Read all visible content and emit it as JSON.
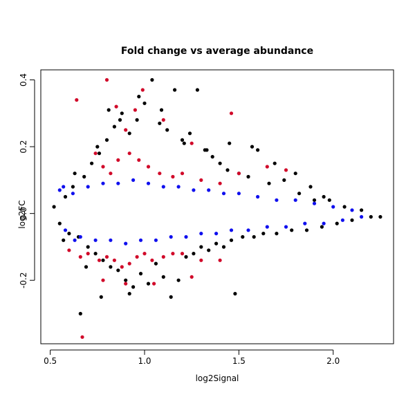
{
  "chart_data": {
    "type": "scatter",
    "title": "Fold change vs average abundance",
    "xlabel": "log2Signal",
    "ylabel": "log2FC",
    "xlim": [
      0.45,
      2.32
    ],
    "ylim": [
      -0.39,
      0.43
    ],
    "xticks": [
      0.5,
      1.0,
      1.5,
      2.0
    ],
    "xtick_labels": [
      "0.5",
      "1.0",
      "1.5",
      "2.0"
    ],
    "yticks": [
      -0.2,
      0.0,
      0.2,
      0.4
    ],
    "ytick_labels": [
      "-0.2",
      "0.0",
      "0.2",
      "0.4"
    ],
    "grid": false,
    "legend": "none",
    "series_colors": {
      "black": "#000000",
      "blue": "#1010ee",
      "red": "#d10a2a"
    },
    "series": [
      {
        "color": "black",
        "points": [
          [
            0.52,
            0.02
          ],
          [
            0.55,
            -0.03
          ],
          [
            0.58,
            0.05
          ],
          [
            0.6,
            -0.06
          ],
          [
            0.62,
            0.08
          ],
          [
            0.65,
            -0.07
          ],
          [
            0.68,
            0.11
          ],
          [
            0.7,
            -0.1
          ],
          [
            0.72,
            0.15
          ],
          [
            0.74,
            -0.12
          ],
          [
            0.76,
            0.18
          ],
          [
            0.78,
            -0.14
          ],
          [
            0.8,
            0.22
          ],
          [
            0.82,
            -0.16
          ],
          [
            0.84,
            0.26
          ],
          [
            0.86,
            -0.17
          ],
          [
            0.88,
            0.3
          ],
          [
            0.9,
            -0.2
          ],
          [
            0.92,
            0.24
          ],
          [
            0.94,
            -0.22
          ],
          [
            0.96,
            0.28
          ],
          [
            0.98,
            -0.18
          ],
          [
            1.0,
            0.33
          ],
          [
            1.02,
            -0.21
          ],
          [
            1.04,
            0.4
          ],
          [
            1.06,
            -0.15
          ],
          [
            1.08,
            0.27
          ],
          [
            1.1,
            -0.19
          ],
          [
            1.12,
            0.25
          ],
          [
            1.14,
            -0.25
          ],
          [
            1.16,
            0.37
          ],
          [
            1.18,
            -0.2
          ],
          [
            1.2,
            0.22
          ],
          [
            1.22,
            -0.13
          ],
          [
            1.24,
            0.24
          ],
          [
            1.26,
            -0.12
          ],
          [
            1.28,
            0.37
          ],
          [
            1.3,
            -0.1
          ],
          [
            1.32,
            0.19
          ],
          [
            1.34,
            -0.11
          ],
          [
            1.36,
            0.17
          ],
          [
            1.38,
            -0.09
          ],
          [
            1.4,
            0.15
          ],
          [
            1.42,
            -0.1
          ],
          [
            1.44,
            0.13
          ],
          [
            1.46,
            -0.08
          ],
          [
            1.48,
            -0.24
          ],
          [
            1.5,
            0.12
          ],
          [
            1.52,
            -0.07
          ],
          [
            1.55,
            0.11
          ],
          [
            1.58,
            -0.07
          ],
          [
            1.6,
            0.19
          ],
          [
            1.63,
            -0.06
          ],
          [
            1.66,
            0.09
          ],
          [
            1.7,
            -0.06
          ],
          [
            1.74,
            0.1
          ],
          [
            1.78,
            -0.05
          ],
          [
            1.82,
            0.06
          ],
          [
            1.86,
            -0.05
          ],
          [
            1.9,
            0.04
          ],
          [
            1.94,
            -0.04
          ],
          [
            1.98,
            0.04
          ],
          [
            2.02,
            -0.03
          ],
          [
            2.06,
            0.02
          ],
          [
            2.1,
            -0.02
          ],
          [
            2.15,
            0.01
          ],
          [
            2.2,
            -0.01
          ],
          [
            2.25,
            -0.01
          ],
          [
            0.66,
            -0.3
          ],
          [
            0.77,
            -0.25
          ],
          [
            0.92,
            -0.24
          ],
          [
            0.57,
            -0.08
          ],
          [
            0.63,
            0.12
          ],
          [
            0.69,
            -0.16
          ],
          [
            0.75,
            0.2
          ],
          [
            0.81,
            0.31
          ],
          [
            0.87,
            0.28
          ],
          [
            0.97,
            0.35
          ],
          [
            1.09,
            0.31
          ],
          [
            1.21,
            0.21
          ],
          [
            1.33,
            0.19
          ],
          [
            1.45,
            0.21
          ],
          [
            1.57,
            0.2
          ],
          [
            1.69,
            0.15
          ],
          [
            1.8,
            0.12
          ],
          [
            1.88,
            0.08
          ],
          [
            1.95,
            0.05
          ]
        ]
      },
      {
        "color": "blue",
        "points": [
          [
            0.55,
            0.07
          ],
          [
            0.58,
            -0.05
          ],
          [
            0.62,
            0.06
          ],
          [
            0.66,
            -0.07
          ],
          [
            0.7,
            0.08
          ],
          [
            0.74,
            -0.08
          ],
          [
            0.78,
            0.09
          ],
          [
            0.82,
            -0.08
          ],
          [
            0.86,
            0.09
          ],
          [
            0.9,
            -0.09
          ],
          [
            0.94,
            0.1
          ],
          [
            0.98,
            -0.08
          ],
          [
            1.02,
            0.09
          ],
          [
            1.06,
            -0.08
          ],
          [
            1.1,
            0.08
          ],
          [
            1.14,
            -0.07
          ],
          [
            1.18,
            0.08
          ],
          [
            1.22,
            -0.07
          ],
          [
            1.26,
            0.07
          ],
          [
            1.3,
            -0.06
          ],
          [
            1.34,
            0.07
          ],
          [
            1.38,
            -0.06
          ],
          [
            1.42,
            0.06
          ],
          [
            1.46,
            -0.05
          ],
          [
            1.5,
            0.06
          ],
          [
            1.55,
            -0.05
          ],
          [
            1.6,
            0.05
          ],
          [
            1.65,
            -0.04
          ],
          [
            1.7,
            0.04
          ],
          [
            1.75,
            -0.04
          ],
          [
            1.8,
            0.04
          ],
          [
            1.85,
            -0.03
          ],
          [
            1.9,
            0.03
          ],
          [
            1.95,
            -0.03
          ],
          [
            2.0,
            0.02
          ],
          [
            2.05,
            -0.02
          ],
          [
            2.1,
            0.01
          ],
          [
            2.15,
            -0.01
          ],
          [
            0.57,
            0.08
          ],
          [
            0.63,
            -0.08
          ]
        ]
      },
      {
        "color": "red",
        "points": [
          [
            0.64,
            0.34
          ],
          [
            0.8,
            0.4
          ],
          [
            0.85,
            0.32
          ],
          [
            0.9,
            0.25
          ],
          [
            0.95,
            0.31
          ],
          [
            0.99,
            0.37
          ],
          [
            1.1,
            0.28
          ],
          [
            1.46,
            0.3
          ],
          [
            0.74,
            0.18
          ],
          [
            0.78,
            0.14
          ],
          [
            0.82,
            0.12
          ],
          [
            0.86,
            0.16
          ],
          [
            0.92,
            0.18
          ],
          [
            0.97,
            0.16
          ],
          [
            1.02,
            0.14
          ],
          [
            1.08,
            0.12
          ],
          [
            1.15,
            0.11
          ],
          [
            1.2,
            0.12
          ],
          [
            1.25,
            0.21
          ],
          [
            1.3,
            0.1
          ],
          [
            1.4,
            0.09
          ],
          [
            1.5,
            0.12
          ],
          [
            1.65,
            0.14
          ],
          [
            1.75,
            0.13
          ],
          [
            0.6,
            -0.11
          ],
          [
            0.66,
            -0.13
          ],
          [
            0.7,
            -0.12
          ],
          [
            0.76,
            -0.14
          ],
          [
            0.8,
            -0.13
          ],
          [
            0.84,
            -0.14
          ],
          [
            0.88,
            -0.16
          ],
          [
            0.92,
            -0.15
          ],
          [
            0.96,
            -0.13
          ],
          [
            1.0,
            -0.12
          ],
          [
            1.04,
            -0.14
          ],
          [
            1.1,
            -0.13
          ],
          [
            1.15,
            -0.12
          ],
          [
            1.2,
            -0.12
          ],
          [
            1.25,
            -0.19
          ],
          [
            1.3,
            -0.14
          ],
          [
            1.4,
            -0.14
          ],
          [
            0.78,
            -0.2
          ],
          [
            0.9,
            -0.21
          ],
          [
            1.05,
            -0.21
          ],
          [
            0.67,
            -0.37
          ]
        ]
      }
    ]
  }
}
